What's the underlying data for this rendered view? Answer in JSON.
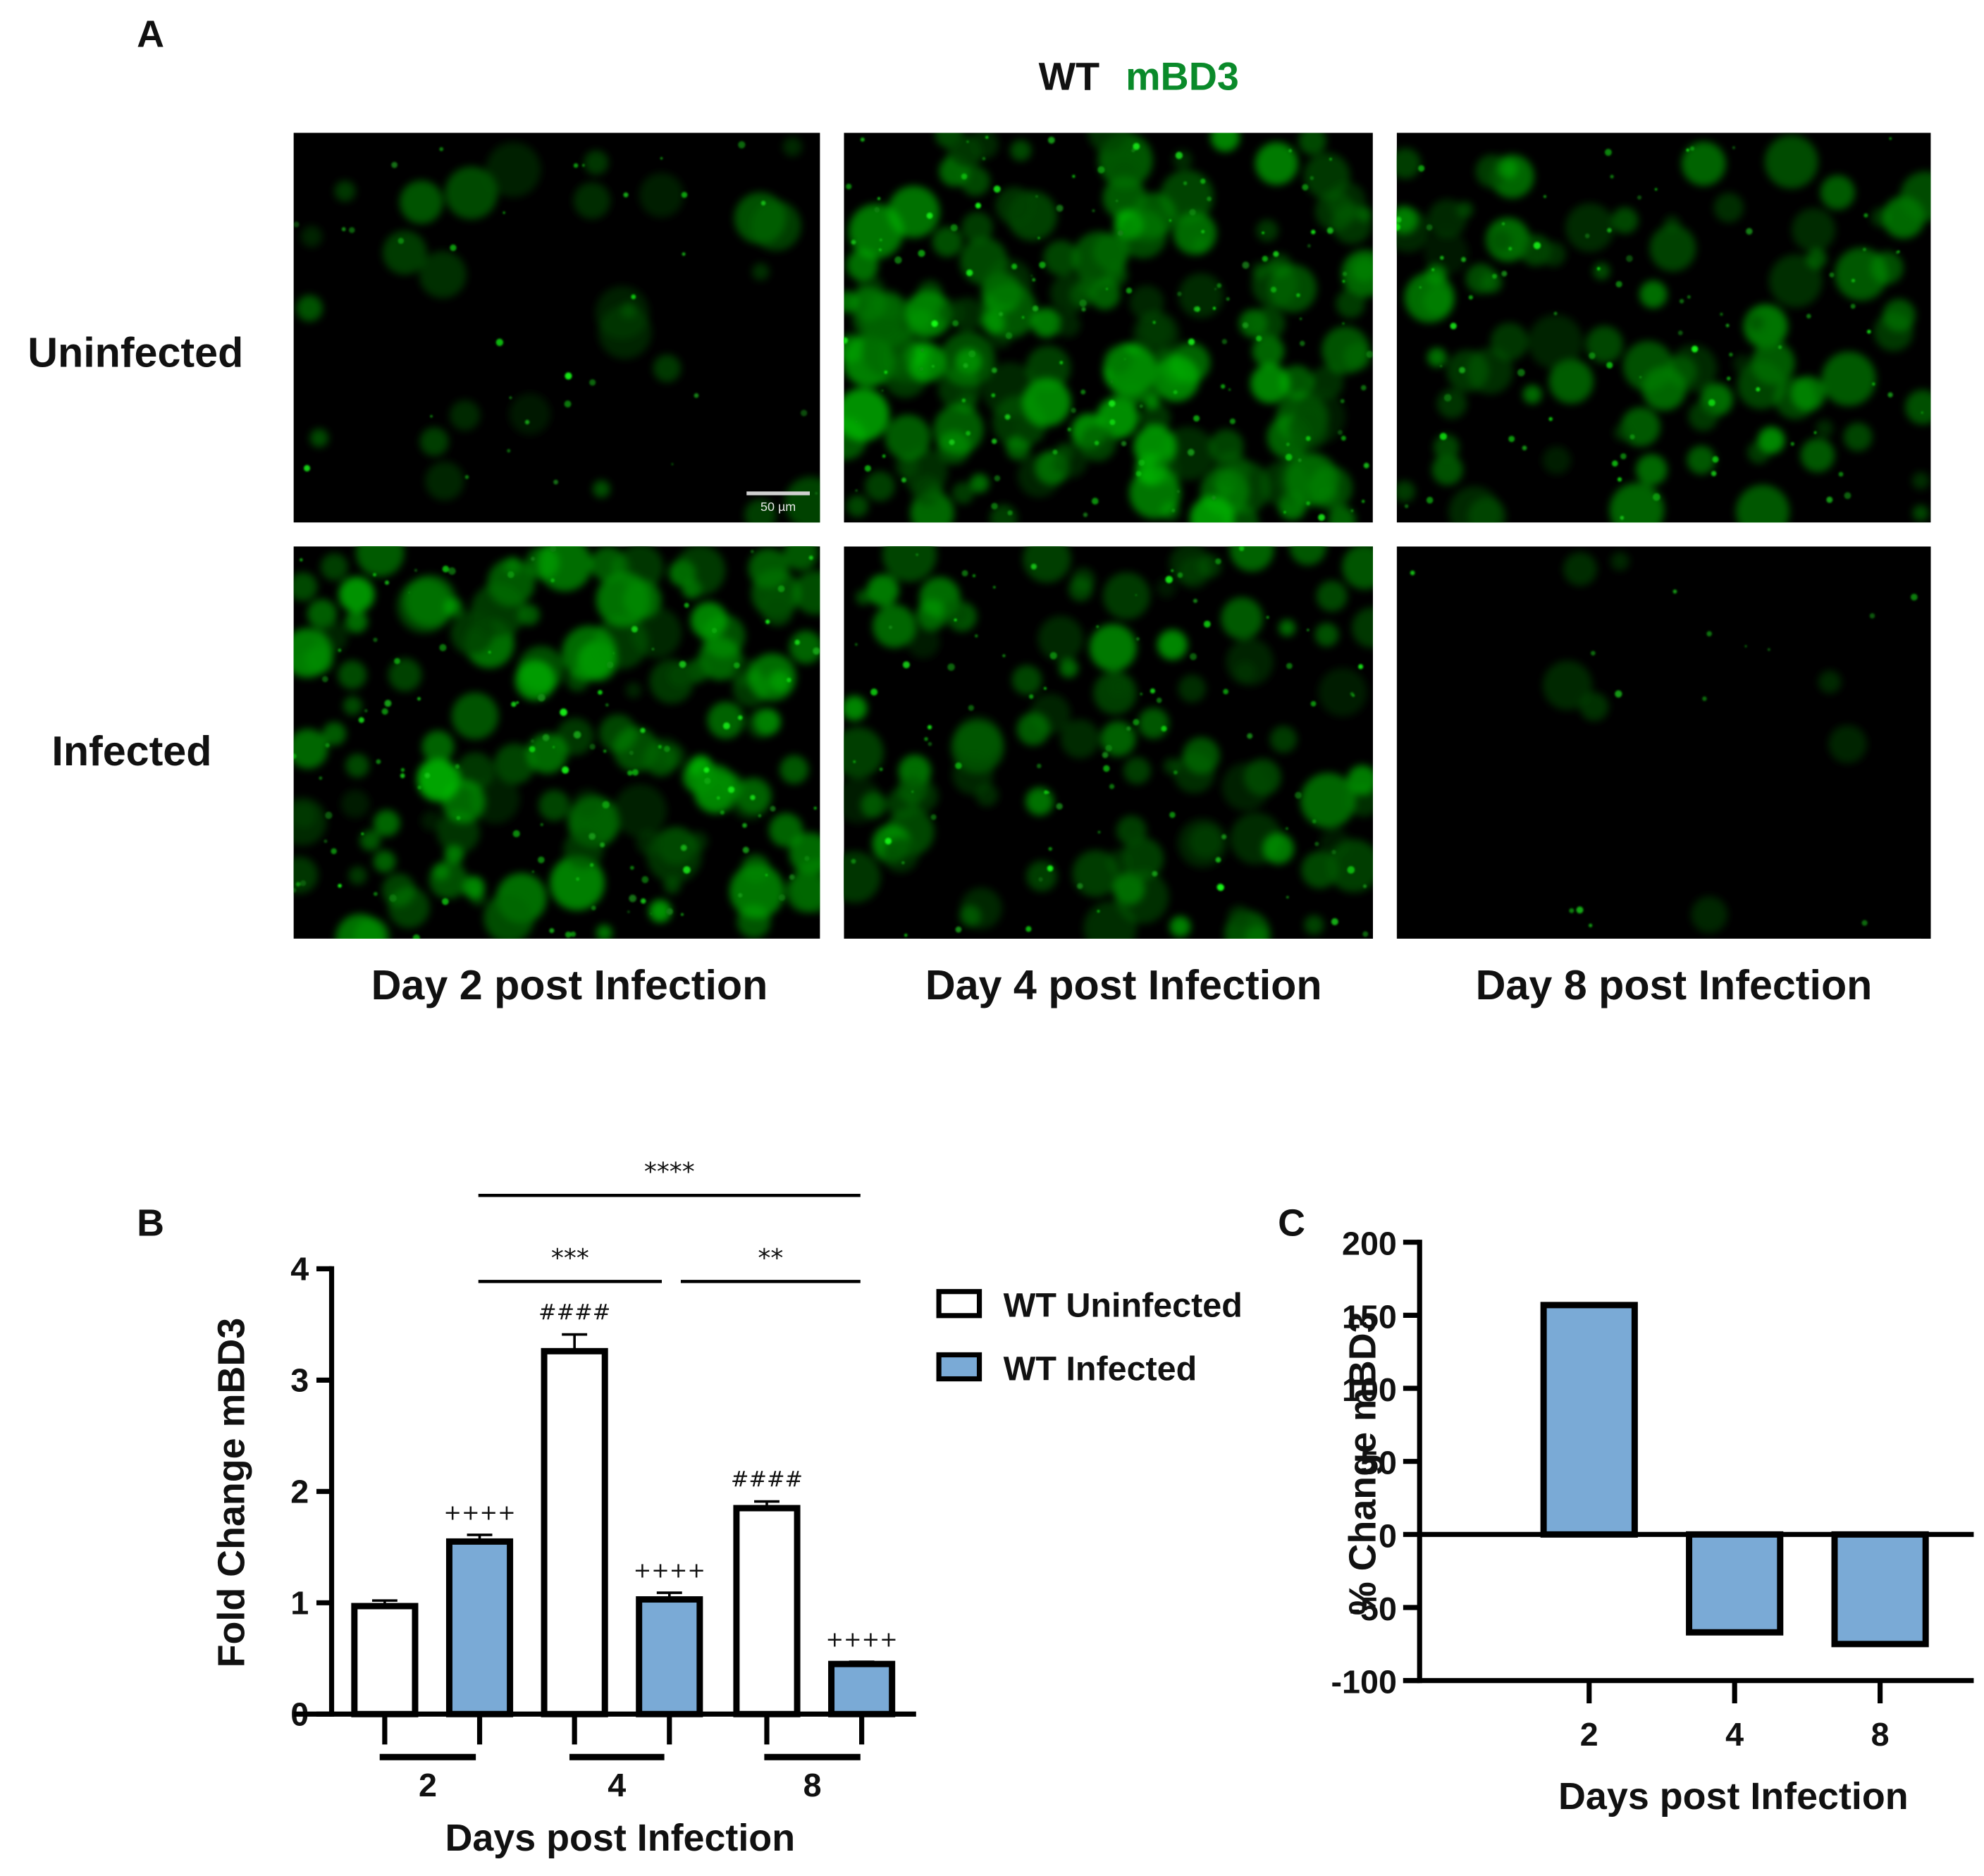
{
  "figure": {
    "panel_a": {
      "label": "A",
      "title_prefix": "WT",
      "title_marker": "mBD3",
      "title_marker_color": "#0a8a2a",
      "row_labels": [
        "Uninfected",
        "Infected"
      ],
      "column_labels": [
        "Day 2 post Infection",
        "Day 4 post Infection",
        "Day 8 post Infection"
      ],
      "scale_bar_label": "50 µm",
      "image_intensity": [
        [
          0.15,
          0.85,
          0.45
        ],
        [
          0.7,
          0.5,
          0.04
        ]
      ]
    },
    "panel_b": {
      "label": "B"
    },
    "panel_c": {
      "label": "C"
    }
  },
  "chart_data": [
    {
      "id": "B",
      "type": "bar",
      "title": "",
      "xlabel": "Days post Infection",
      "ylabel": "Fold Change mBD3",
      "categories": [
        "2",
        "4",
        "8"
      ],
      "ylim": [
        0,
        4
      ],
      "yticks": [
        "0",
        "1",
        "2",
        "3",
        "4"
      ],
      "grid": false,
      "legend_position": "right",
      "series": [
        {
          "name": "WT Uninfected",
          "color": "#ffffff",
          "values": [
            0.97,
            3.26,
            1.85
          ],
          "errors": [
            0.05,
            0.15,
            0.06
          ]
        },
        {
          "name": "WT Infected",
          "color": "#7aaad6",
          "values": [
            1.55,
            1.03,
            0.45
          ],
          "errors": [
            0.06,
            0.06,
            0.02
          ]
        }
      ],
      "bar_annotations": [
        {
          "series": "WT Infected",
          "category": "2",
          "text": "++++"
        },
        {
          "series": "WT Uninfected",
          "category": "4",
          "text": "####"
        },
        {
          "series": "WT Infected",
          "category": "4",
          "text": "++++"
        },
        {
          "series": "WT Uninfected",
          "category": "8",
          "text": "####"
        },
        {
          "series": "WT Infected",
          "category": "8",
          "text": "++++"
        }
      ],
      "significance_brackets": [
        {
          "from": "4",
          "to": "8",
          "text": "****",
          "level": 2
        },
        {
          "from": "2",
          "to": "4",
          "text": "***",
          "level": 1
        },
        {
          "from": "4",
          "to": "8",
          "text": "**",
          "level": 1
        }
      ]
    },
    {
      "id": "C",
      "type": "bar",
      "title": "",
      "xlabel": "Days post Infection",
      "ylabel": "% Change mBD3",
      "categories": [
        "2",
        "4",
        "8"
      ],
      "values": [
        157,
        -67,
        -75
      ],
      "color": "#7aaad6",
      "ylim": [
        -100,
        200
      ],
      "yticks": [
        "-100",
        "-50",
        "0",
        "50",
        "100",
        "150",
        "200"
      ],
      "grid": false
    }
  ]
}
